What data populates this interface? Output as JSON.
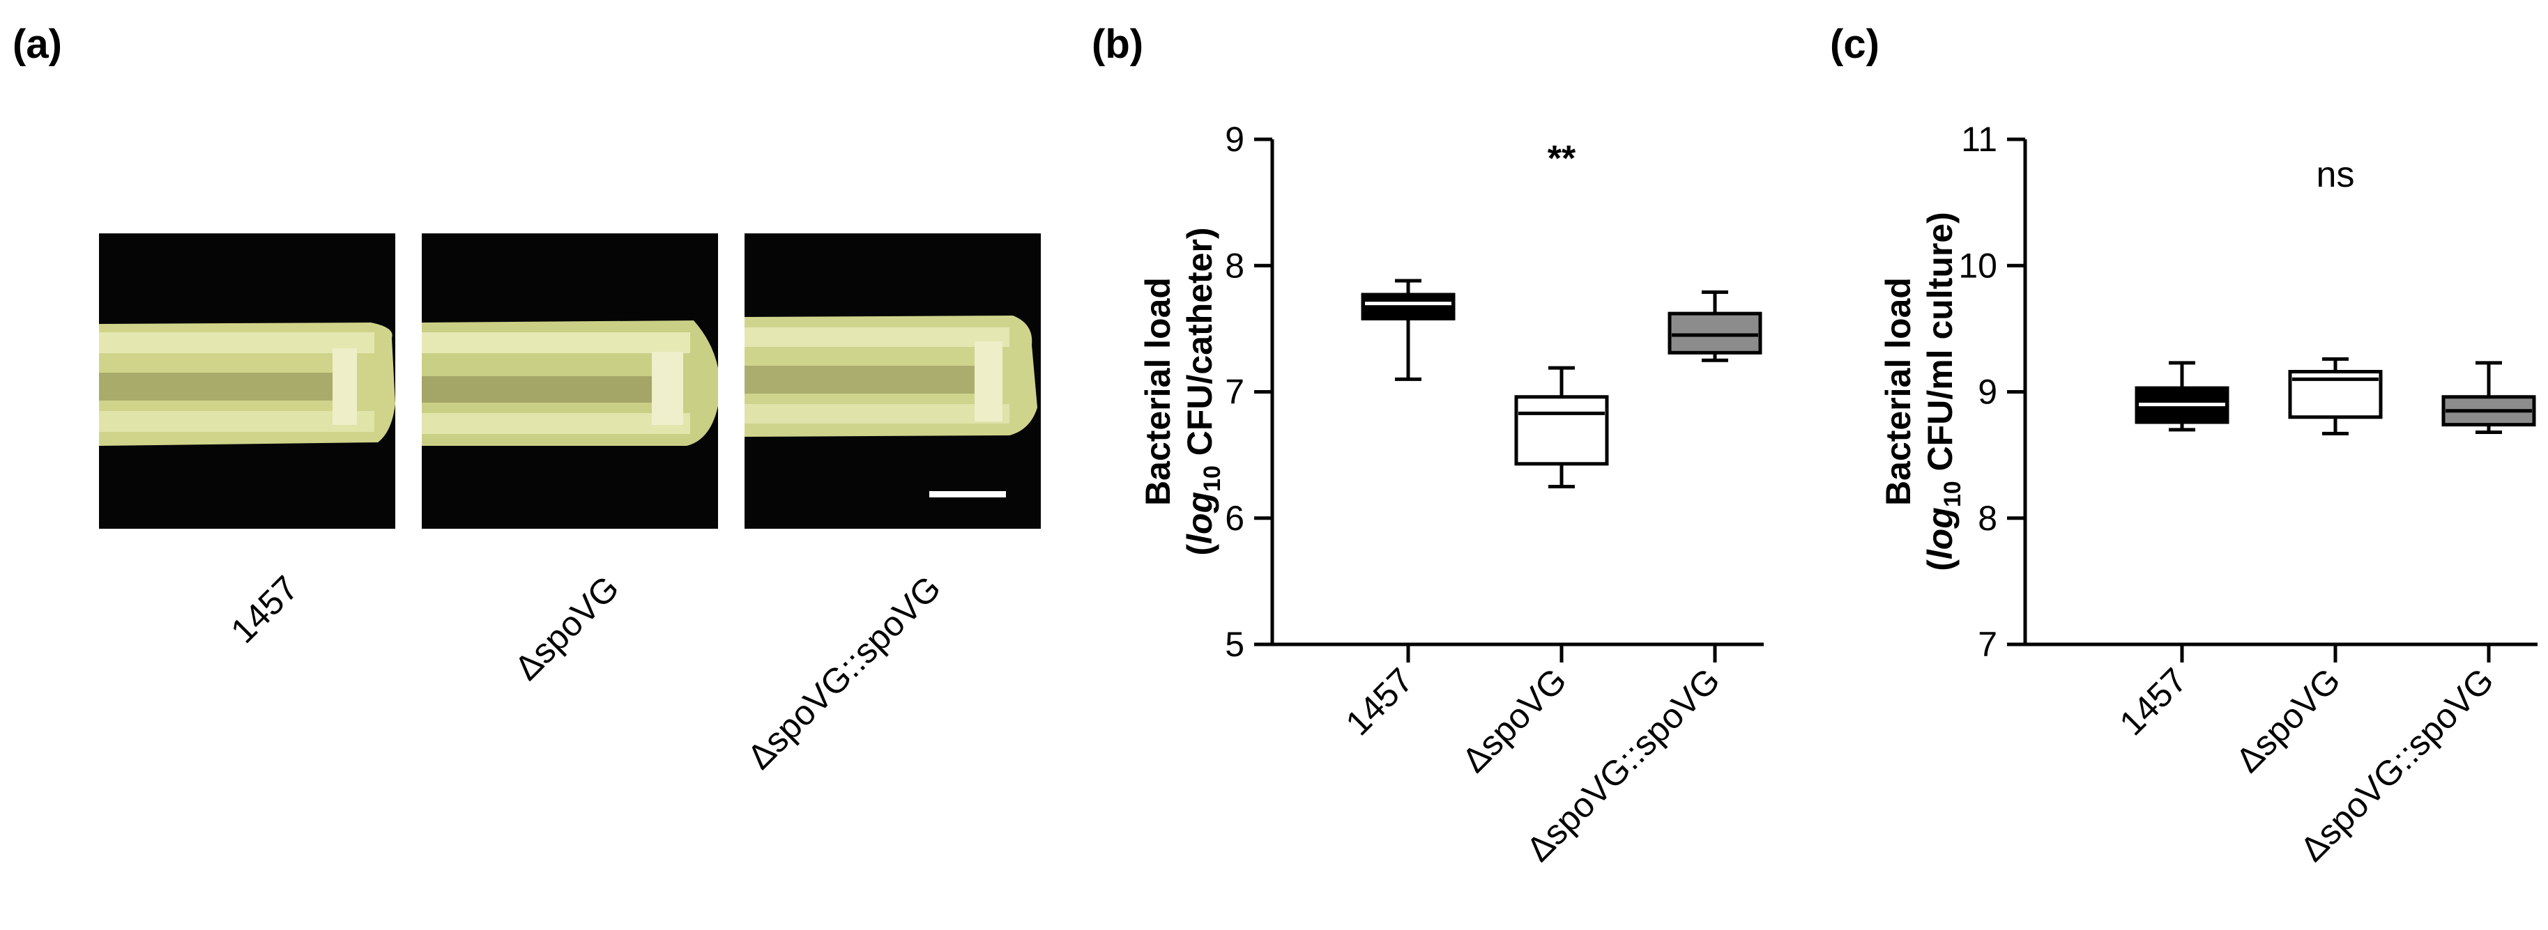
{
  "panels": {
    "a": {
      "label": "(a)"
    },
    "b": {
      "label": "(b)"
    },
    "c": {
      "label": "(c)"
    }
  },
  "photos": [
    {
      "label": "1457"
    },
    {
      "label": "ΔspoVG"
    },
    {
      "label": "ΔspoVG::spoVG"
    }
  ],
  "colors": {
    "catheter": "#d6dc8c",
    "photo_background": "#050505",
    "box_1457": "#000000",
    "box_delta": "#ffffff",
    "box_complement": "#8c8c8c"
  },
  "chart_data": [
    {
      "type": "box",
      "panel": "(b)",
      "categories": [
        "1457",
        "ΔspoVG",
        "ΔspoVG::spoVG"
      ],
      "ylabel": "Bacterial load (log10 CFU/catheter)",
      "ylim": [
        5,
        9
      ],
      "yticks": [
        5,
        6,
        7,
        8,
        9
      ],
      "annotation": "**",
      "boxes": [
        {
          "name": "1457",
          "min": 7.1,
          "q1": 7.58,
          "median": 7.7,
          "q3": 7.77,
          "max": 7.88,
          "fill": "#000000"
        },
        {
          "name": "ΔspoVG",
          "min": 6.25,
          "q1": 6.43,
          "median": 6.83,
          "q3": 6.96,
          "max": 7.19,
          "fill": "#ffffff"
        },
        {
          "name": "ΔspoVG::spoVG",
          "min": 7.25,
          "q1": 7.31,
          "median": 7.45,
          "q3": 7.62,
          "max": 7.79,
          "fill": "#8c8c8c"
        }
      ]
    },
    {
      "type": "box",
      "panel": "(c)",
      "categories": [
        "1457",
        "ΔspoVG",
        "ΔspoVG::spoVG"
      ],
      "ylabel": "Bacterial load (log10 CFU/ml culture)",
      "ylim": [
        7,
        11
      ],
      "yticks": [
        7,
        8,
        9,
        10,
        11
      ],
      "annotation": "ns",
      "boxes": [
        {
          "name": "1457",
          "min": 8.7,
          "q1": 8.76,
          "median": 8.9,
          "q3": 9.03,
          "max": 9.23,
          "fill": "#000000"
        },
        {
          "name": "ΔspoVG",
          "min": 8.67,
          "q1": 8.8,
          "median": 9.1,
          "q3": 9.16,
          "max": 9.26,
          "fill": "#ffffff"
        },
        {
          "name": "ΔspoVG::spoVG",
          "min": 8.68,
          "q1": 8.74,
          "median": 8.85,
          "q3": 8.96,
          "max": 9.23,
          "fill": "#8c8c8c"
        }
      ]
    }
  ]
}
